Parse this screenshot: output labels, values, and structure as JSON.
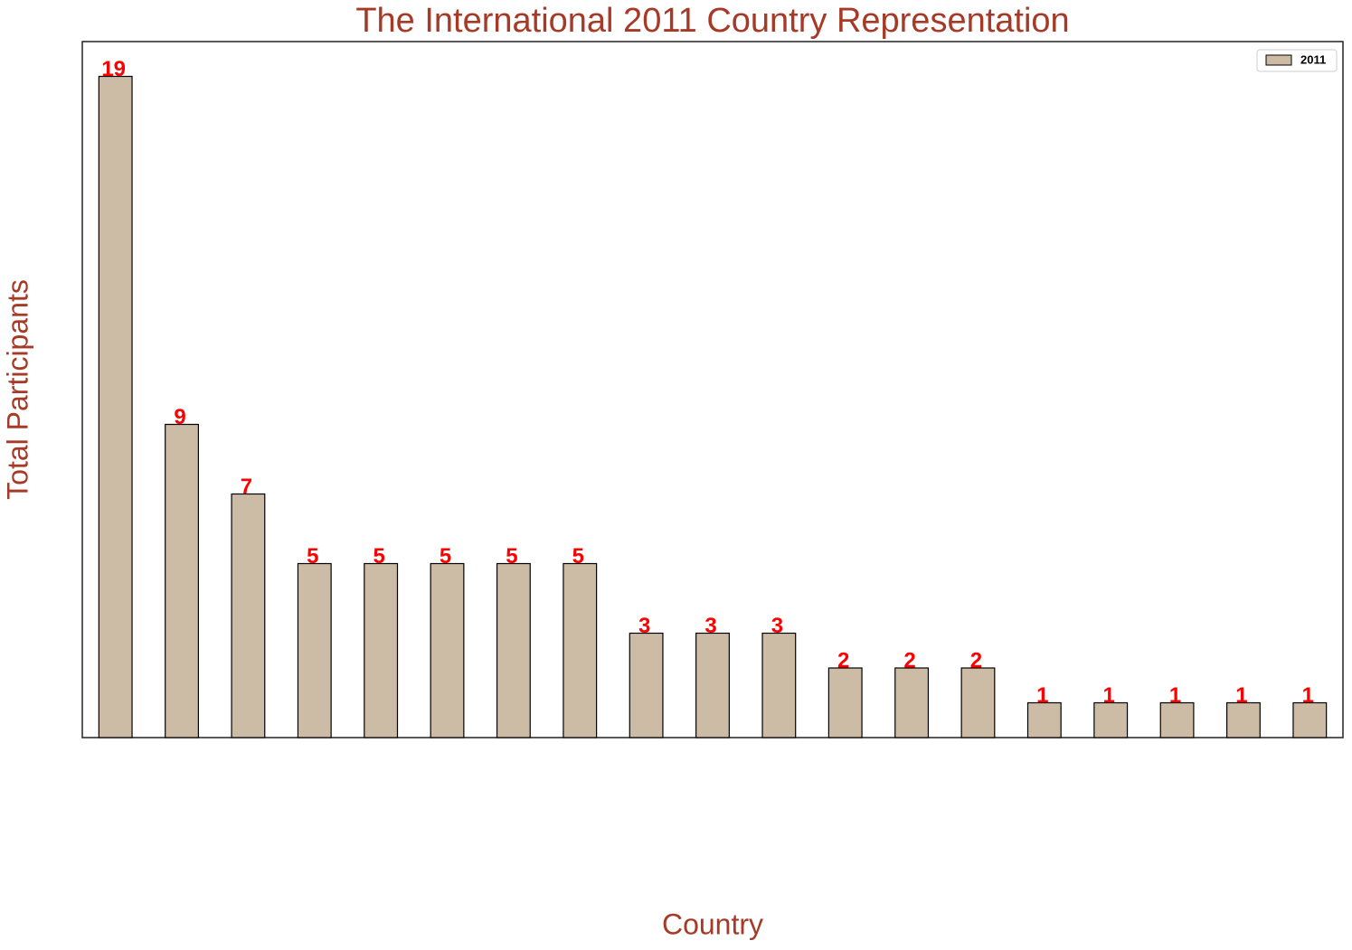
{
  "chart_data": {
    "type": "bar",
    "title": "The International 2011 Country Representation",
    "xlabel": "Country",
    "ylabel": "Total Participants",
    "categories": [
      null,
      null,
      null,
      null,
      null,
      null,
      null,
      null,
      null,
      null,
      null,
      null,
      null,
      null,
      null,
      null,
      null,
      null,
      null
    ],
    "series": [
      {
        "name": "2011",
        "color": "#cdbca5",
        "values": [
          19,
          9,
          7,
          5,
          5,
          5,
          5,
          5,
          3,
          3,
          3,
          2,
          2,
          2,
          1,
          1,
          1,
          1,
          1
        ]
      }
    ],
    "ylim": [
      0,
      20
    ],
    "legend": "upper right",
    "value_label_color": "#ff0000"
  }
}
